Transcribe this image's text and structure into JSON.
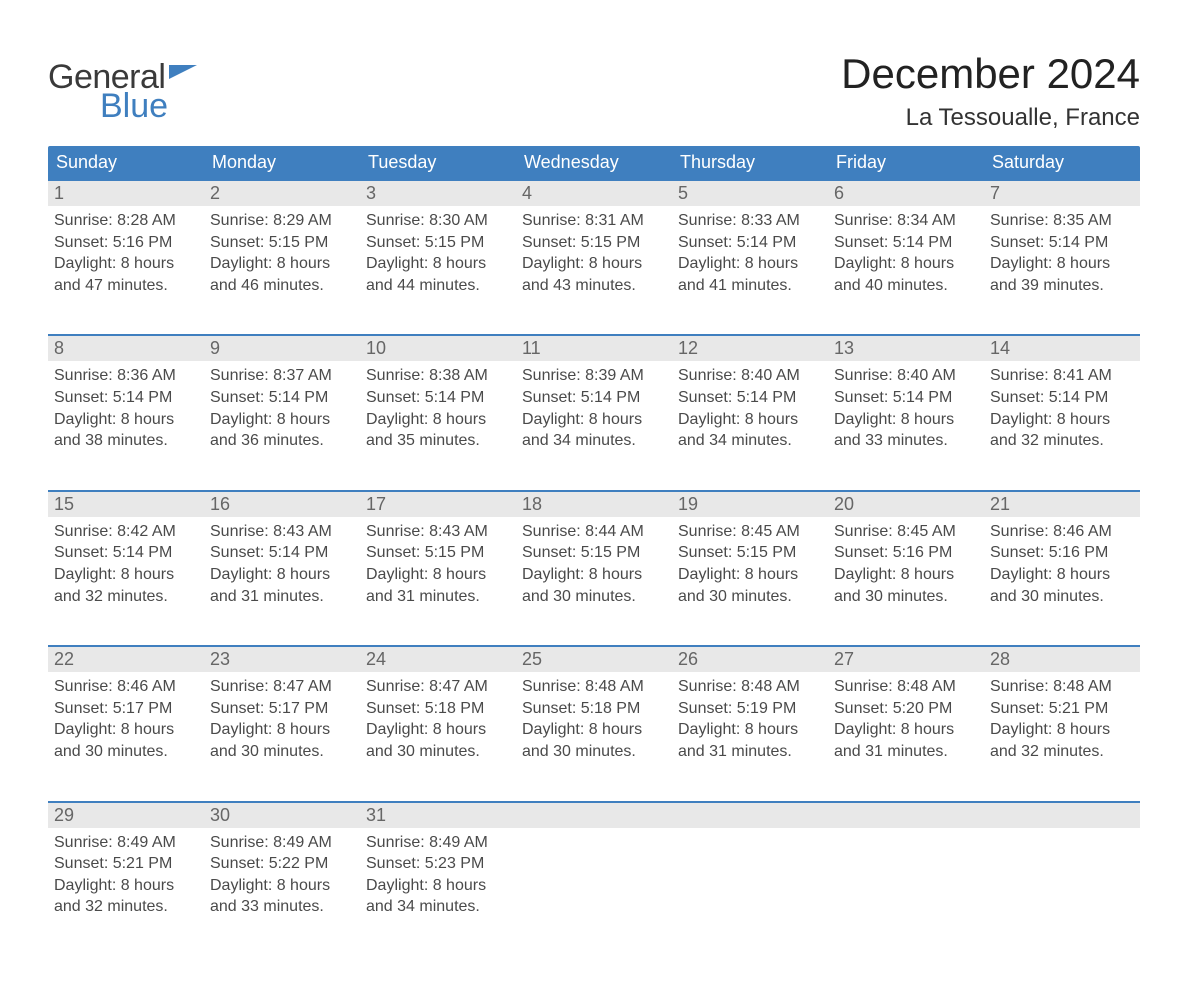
{
  "logo": {
    "word1": "General",
    "word2": "Blue"
  },
  "title": "December 2024",
  "location": "La Tessoualle, France",
  "brand_color": "#3f7fbf",
  "header_row_color": "#e8e8e8",
  "background_color": "#ffffff",
  "daynames": [
    "Sunday",
    "Monday",
    "Tuesday",
    "Wednesday",
    "Thursday",
    "Friday",
    "Saturday"
  ],
  "labels": {
    "sunrise": "Sunrise",
    "sunset": "Sunset",
    "daylight": "Daylight"
  },
  "fonts": {
    "title_size": 42,
    "location_size": 24,
    "dayname_size": 18,
    "body_size": 16
  },
  "weeks": [
    [
      {
        "n": "1",
        "sunrise": "8:28 AM",
        "sunset": "5:16 PM",
        "daylight1": "8 hours",
        "daylight2": "and 47 minutes."
      },
      {
        "n": "2",
        "sunrise": "8:29 AM",
        "sunset": "5:15 PM",
        "daylight1": "8 hours",
        "daylight2": "and 46 minutes."
      },
      {
        "n": "3",
        "sunrise": "8:30 AM",
        "sunset": "5:15 PM",
        "daylight1": "8 hours",
        "daylight2": "and 44 minutes."
      },
      {
        "n": "4",
        "sunrise": "8:31 AM",
        "sunset": "5:15 PM",
        "daylight1": "8 hours",
        "daylight2": "and 43 minutes."
      },
      {
        "n": "5",
        "sunrise": "8:33 AM",
        "sunset": "5:14 PM",
        "daylight1": "8 hours",
        "daylight2": "and 41 minutes."
      },
      {
        "n": "6",
        "sunrise": "8:34 AM",
        "sunset": "5:14 PM",
        "daylight1": "8 hours",
        "daylight2": "and 40 minutes."
      },
      {
        "n": "7",
        "sunrise": "8:35 AM",
        "sunset": "5:14 PM",
        "daylight1": "8 hours",
        "daylight2": "and 39 minutes."
      }
    ],
    [
      {
        "n": "8",
        "sunrise": "8:36 AM",
        "sunset": "5:14 PM",
        "daylight1": "8 hours",
        "daylight2": "and 38 minutes."
      },
      {
        "n": "9",
        "sunrise": "8:37 AM",
        "sunset": "5:14 PM",
        "daylight1": "8 hours",
        "daylight2": "and 36 minutes."
      },
      {
        "n": "10",
        "sunrise": "8:38 AM",
        "sunset": "5:14 PM",
        "daylight1": "8 hours",
        "daylight2": "and 35 minutes."
      },
      {
        "n": "11",
        "sunrise": "8:39 AM",
        "sunset": "5:14 PM",
        "daylight1": "8 hours",
        "daylight2": "and 34 minutes."
      },
      {
        "n": "12",
        "sunrise": "8:40 AM",
        "sunset": "5:14 PM",
        "daylight1": "8 hours",
        "daylight2": "and 34 minutes."
      },
      {
        "n": "13",
        "sunrise": "8:40 AM",
        "sunset": "5:14 PM",
        "daylight1": "8 hours",
        "daylight2": "and 33 minutes."
      },
      {
        "n": "14",
        "sunrise": "8:41 AM",
        "sunset": "5:14 PM",
        "daylight1": "8 hours",
        "daylight2": "and 32 minutes."
      }
    ],
    [
      {
        "n": "15",
        "sunrise": "8:42 AM",
        "sunset": "5:14 PM",
        "daylight1": "8 hours",
        "daylight2": "and 32 minutes."
      },
      {
        "n": "16",
        "sunrise": "8:43 AM",
        "sunset": "5:14 PM",
        "daylight1": "8 hours",
        "daylight2": "and 31 minutes."
      },
      {
        "n": "17",
        "sunrise": "8:43 AM",
        "sunset": "5:15 PM",
        "daylight1": "8 hours",
        "daylight2": "and 31 minutes."
      },
      {
        "n": "18",
        "sunrise": "8:44 AM",
        "sunset": "5:15 PM",
        "daylight1": "8 hours",
        "daylight2": "and 30 minutes."
      },
      {
        "n": "19",
        "sunrise": "8:45 AM",
        "sunset": "5:15 PM",
        "daylight1": "8 hours",
        "daylight2": "and 30 minutes."
      },
      {
        "n": "20",
        "sunrise": "8:45 AM",
        "sunset": "5:16 PM",
        "daylight1": "8 hours",
        "daylight2": "and 30 minutes."
      },
      {
        "n": "21",
        "sunrise": "8:46 AM",
        "sunset": "5:16 PM",
        "daylight1": "8 hours",
        "daylight2": "and 30 minutes."
      }
    ],
    [
      {
        "n": "22",
        "sunrise": "8:46 AM",
        "sunset": "5:17 PM",
        "daylight1": "8 hours",
        "daylight2": "and 30 minutes."
      },
      {
        "n": "23",
        "sunrise": "8:47 AM",
        "sunset": "5:17 PM",
        "daylight1": "8 hours",
        "daylight2": "and 30 minutes."
      },
      {
        "n": "24",
        "sunrise": "8:47 AM",
        "sunset": "5:18 PM",
        "daylight1": "8 hours",
        "daylight2": "and 30 minutes."
      },
      {
        "n": "25",
        "sunrise": "8:48 AM",
        "sunset": "5:18 PM",
        "daylight1": "8 hours",
        "daylight2": "and 30 minutes."
      },
      {
        "n": "26",
        "sunrise": "8:48 AM",
        "sunset": "5:19 PM",
        "daylight1": "8 hours",
        "daylight2": "and 31 minutes."
      },
      {
        "n": "27",
        "sunrise": "8:48 AM",
        "sunset": "5:20 PM",
        "daylight1": "8 hours",
        "daylight2": "and 31 minutes."
      },
      {
        "n": "28",
        "sunrise": "8:48 AM",
        "sunset": "5:21 PM",
        "daylight1": "8 hours",
        "daylight2": "and 32 minutes."
      }
    ],
    [
      {
        "n": "29",
        "sunrise": "8:49 AM",
        "sunset": "5:21 PM",
        "daylight1": "8 hours",
        "daylight2": "and 32 minutes."
      },
      {
        "n": "30",
        "sunrise": "8:49 AM",
        "sunset": "5:22 PM",
        "daylight1": "8 hours",
        "daylight2": "and 33 minutes."
      },
      {
        "n": "31",
        "sunrise": "8:49 AM",
        "sunset": "5:23 PM",
        "daylight1": "8 hours",
        "daylight2": "and 34 minutes."
      },
      null,
      null,
      null,
      null
    ]
  ]
}
